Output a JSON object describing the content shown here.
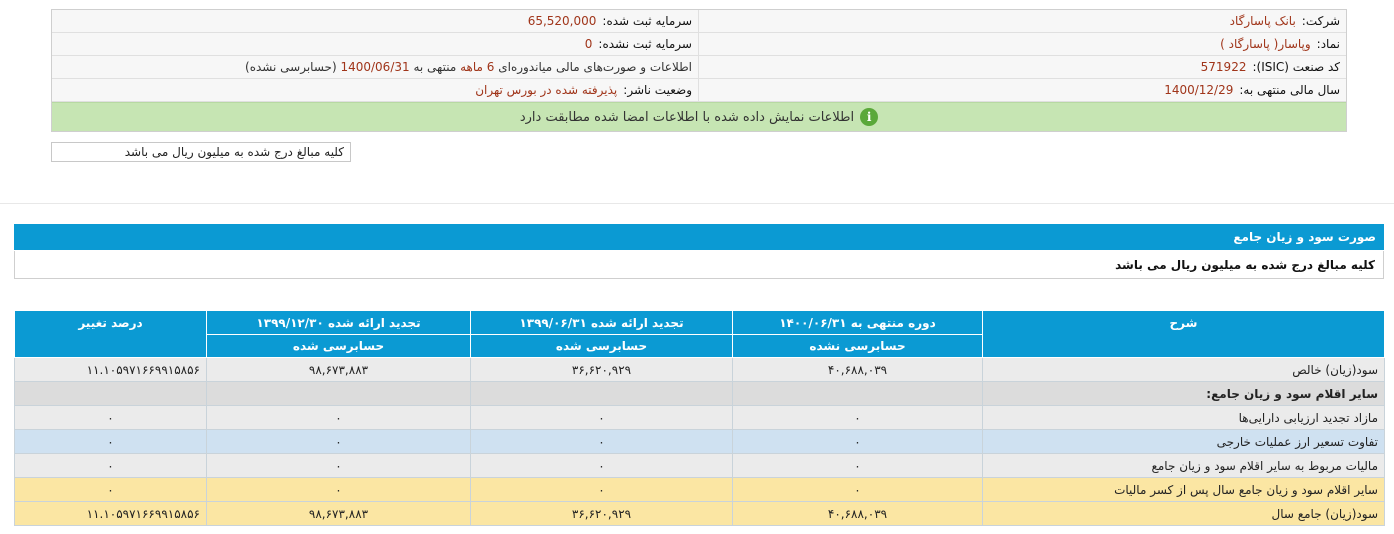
{
  "company_info": {
    "company_label": "شرکت:",
    "company_value": "بانک پاسارگاد",
    "capital_label": "سرمایه ثبت شده:",
    "capital_value": "65,520,000",
    "symbol_label": "نماد:",
    "symbol_value": "وپاسار( پاسارگاد )",
    "unreg_capital_label": "سرمایه ثبت نشده:",
    "unreg_capital_value": "0",
    "isic_label": "کد صنعت (ISIC):",
    "isic_value": "571922",
    "report_prefix": "اطلاعات و صورت‌های مالی میاندوره‌ای",
    "report_period": "6 ماهه",
    "report_mid": "منتهی به",
    "report_date": "1400/06/31",
    "report_status": "(حسابرسی نشده)",
    "fiscal_label": "سال مالی منتهی به:",
    "fiscal_value": "1400/12/29",
    "publisher_label": "وضعیت ناشر:",
    "publisher_value": "پذیرفته شده در بورس تهران"
  },
  "notice": {
    "icon": "info-icon",
    "text": "اطلاعات نمایش داده شده با اطلاعات امضا شده مطابقت دارد"
  },
  "units_note": "کلیه مبالغ درج شده به میلیون ریال می باشد",
  "statement": {
    "title": "صورت سود و زیان جامع",
    "units": "کلیه مبالغ درج شده به میلیون ریال می باشد"
  },
  "table": {
    "headers": {
      "desc": "شرح",
      "col1": "دوره منتهی به ۱۴۰۰/۰۶/۳۱",
      "col1_sub": "حسابرسی نشده",
      "col2": "تجدید ارائه شده ۱۳۹۹/۰۶/۳۱",
      "col2_sub": "حسابرسی شده",
      "col3": "تجدید ارائه شده ۱۳۹۹/۱۲/۳۰",
      "col3_sub": "حسابرسی شده",
      "col4": "درصد تغییر"
    },
    "rows": [
      {
        "desc": "سود(زیان) خالص",
        "c1": "۴۰,۶۸۸,۰۳۹",
        "c2": "۳۶,۶۲۰,۹۲۹",
        "c3": "۹۸,۶۷۳,۸۸۳",
        "c4": "۱۱.۱۰۵۹۷۱۶۶۹۹۱۵۸۵۶"
      },
      {
        "desc": "سایر اقلام سود و زیان جامع:",
        "c1": "",
        "c2": "",
        "c3": "",
        "c4": ""
      },
      {
        "desc": "مازاد تجدید ارزیابی دارایی‌ها",
        "c1": "۰",
        "c2": "۰",
        "c3": "۰",
        "c4": "۰"
      },
      {
        "desc": "تفاوت تسعیر ارز عملیات خارجی",
        "c1": "۰",
        "c2": "۰",
        "c3": "۰",
        "c4": "۰"
      },
      {
        "desc": "مالیات مربوط به سایر اقلام سود و زیان جامع",
        "c1": "۰",
        "c2": "۰",
        "c3": "۰",
        "c4": "۰"
      },
      {
        "desc": "سایر اقلام سود و زیان جامع سال پس از کسر مالیات",
        "c1": "۰",
        "c2": "۰",
        "c3": "۰",
        "c4": "۰"
      },
      {
        "desc": "سود(زیان) جامع سال",
        "c1": "۴۰,۶۸۸,۰۳۹",
        "c2": "۳۶,۶۲۰,۹۲۹",
        "c3": "۹۸,۶۷۳,۸۸۳",
        "c4": "۱۱.۱۰۵۹۷۱۶۶۹۹۱۵۸۵۶"
      }
    ]
  }
}
